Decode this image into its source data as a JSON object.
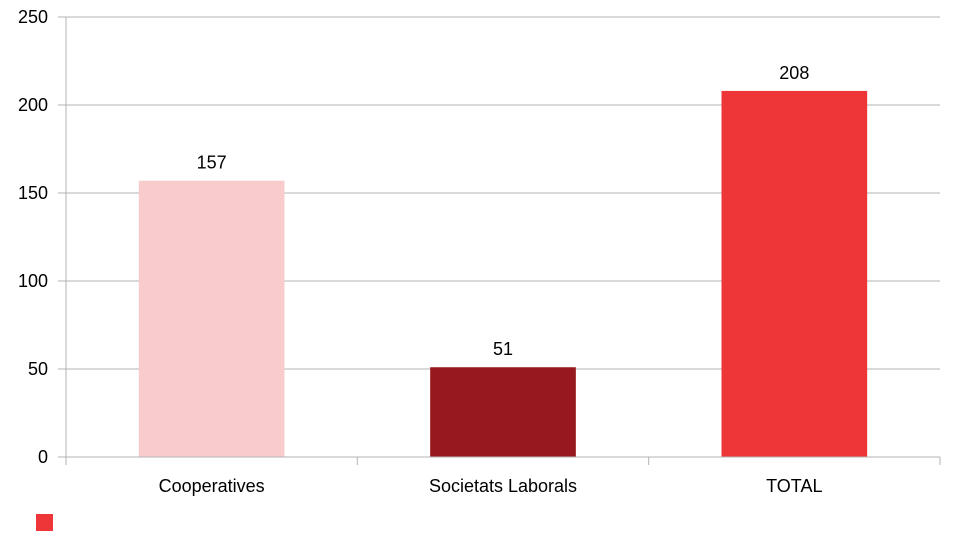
{
  "chart_data": {
    "type": "bar",
    "categories": [
      "Cooperatives",
      "Societats Laborals",
      "TOTAL"
    ],
    "values": [
      157,
      51,
      208
    ],
    "bar_colors": [
      "#f8cccc",
      "#97181e",
      "#ee3538"
    ],
    "data_labels": [
      "157",
      "51",
      "208"
    ],
    "y_ticks": [
      "0",
      "50",
      "100",
      "150",
      "200",
      "250"
    ],
    "ylim": [
      0,
      250
    ],
    "grid": true,
    "legend_swatch_color": "#ee3538",
    "legend_placement": "bottom-left"
  }
}
